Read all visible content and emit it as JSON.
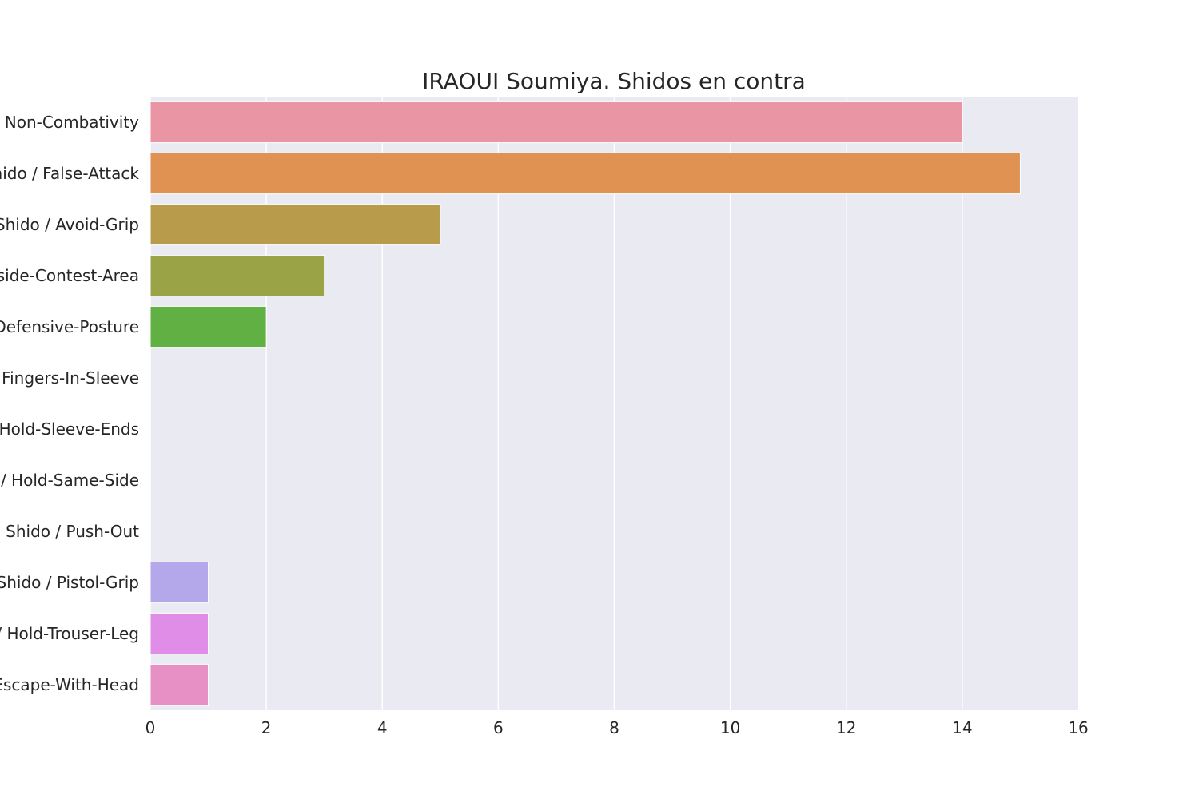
{
  "chart_data": {
    "type": "bar",
    "orientation": "horizontal",
    "title": "IRAOUI Soumiya. Shidos en contra",
    "xlabel": "",
    "ylabel": "",
    "xlim": [
      0,
      16
    ],
    "x_ticks": [
      "0",
      "2",
      "4",
      "6",
      "8",
      "10",
      "12",
      "14",
      "16"
    ],
    "grid": true,
    "categories": [
      "Shido / Non-Combativity",
      "Shido / False-Attack",
      "Shido / Avoid-Grip",
      "Shido / Outside-Contest-Area",
      "Shido / Defensive-Posture",
      "Shido / Fingers-In-Sleeve",
      "Shido / Hold-Sleeve-Ends",
      "Shido / Hold-Same-Side",
      "Shido / Push-Out",
      "Shido / Pistol-Grip",
      "Shido / Hold-Trouser-Leg",
      "Shido / Escape-With-Head"
    ],
    "values": [
      14,
      15,
      5,
      3,
      2,
      0,
      0,
      0,
      0,
      1,
      1,
      1
    ],
    "colors": [
      "#e995a3",
      "#e09253",
      "#b99c4b",
      "#9aa447",
      "#60b044",
      "#52ae8c",
      "#55aba3",
      "#58a9bb",
      "#5fa7d6",
      "#b4a7ea",
      "#df8de6",
      "#e790c5"
    ],
    "background_color": "#eaeaf2",
    "grid_color": "#ffffff"
  }
}
